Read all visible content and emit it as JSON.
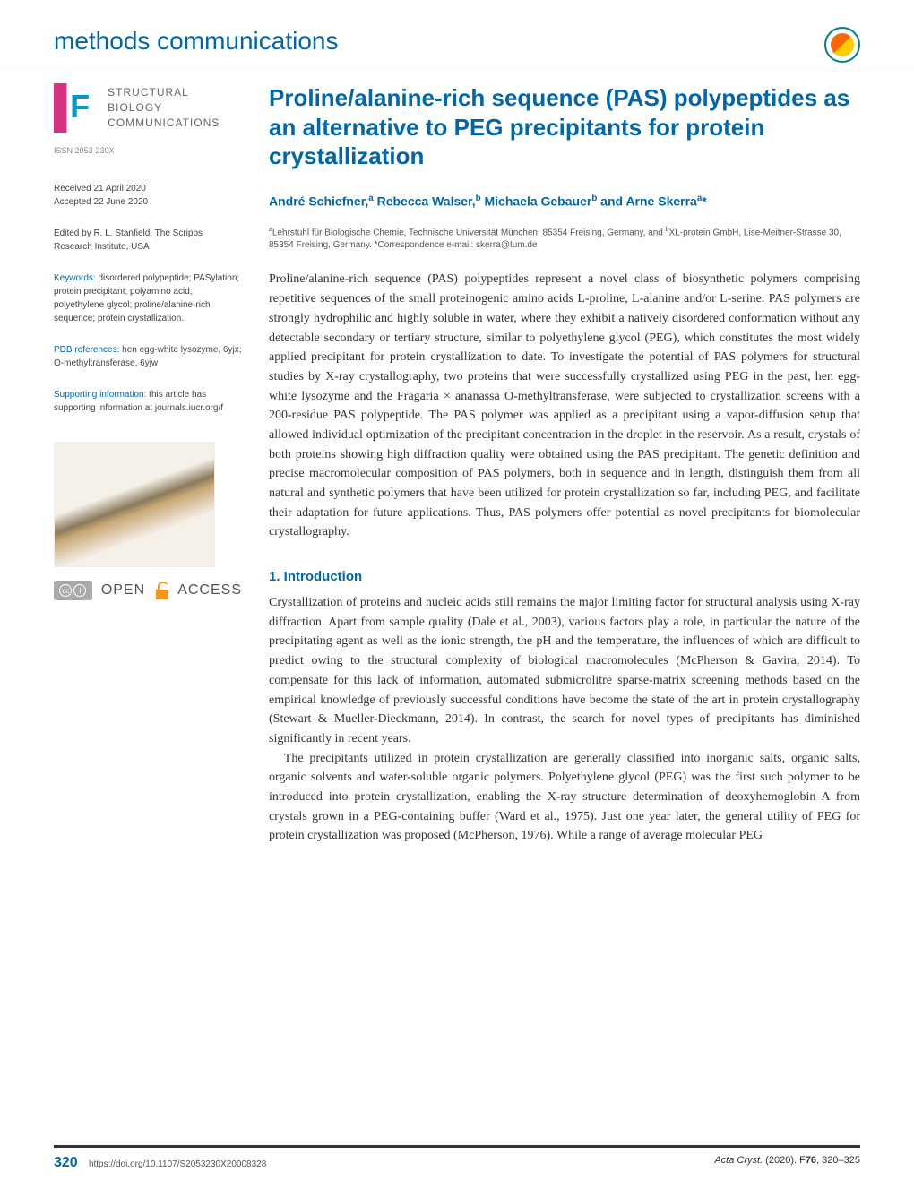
{
  "header": {
    "section_title": "methods communications"
  },
  "journal": {
    "name_line1": "STRUCTURAL BIOLOGY",
    "name_line2": "COMMUNICATIONS",
    "issn": "ISSN 2053-230X",
    "logo_letter": "F"
  },
  "meta": {
    "received": "Received 21 April 2020",
    "accepted": "Accepted 22 June 2020",
    "edited_by": "Edited by R. L. Stanfield, The Scripps Research Institute, USA",
    "keywords_label": "Keywords:",
    "keywords": " disordered polypeptide; PASylation; protein precipitant; polyamino acid; polyethylene glycol; proline/alanine-rich sequence; protein crystallization.",
    "pdb_label": "PDB references:",
    "pdb": " hen egg-white lysozyme, 6yjx; O-methyltransferase, 6yjw",
    "supporting_label": "Supporting information:",
    "supporting": " this article has supporting information at journals.iucr.org/f"
  },
  "article": {
    "title": "Proline/alanine-rich sequence (PAS) polypeptides as an alternative to PEG precipitants for protein crystallization",
    "authors_html": "André Schiefner,<sup>a</sup> Rebecca Walser,<sup>b</sup> Michaela Gebauer<sup>b</sup> and Arne Skerra<sup>a</sup>*",
    "affiliations_html": "<sup>a</sup>Lehrstuhl für Biologische Chemie, Technische Universität München, 85354 Freising, Germany, and <sup>b</sup>XL-protein GmbH, Lise-Meitner-Strasse 30, 85354 Freising, Germany. *Correspondence e-mail: skerra@tum.de",
    "abstract": "Proline/alanine-rich sequence (PAS) polypeptides represent a novel class of biosynthetic polymers comprising repetitive sequences of the small proteinogenic amino acids L-proline, L-alanine and/or L-serine. PAS polymers are strongly hydrophilic and highly soluble in water, where they exhibit a natively disordered conformation without any detectable secondary or tertiary structure, similar to polyethylene glycol (PEG), which constitutes the most widely applied precipitant for protein crystallization to date. To investigate the potential of PAS polymers for structural studies by X-ray crystallography, two proteins that were successfully crystallized using PEG in the past, hen egg-white lysozyme and the Fragaria × ananassa O-methyltransferase, were subjected to crystallization screens with a 200-residue PAS polypeptide. The PAS polymer was applied as a precipitant using a vapor-diffusion setup that allowed individual optimization of the precipitant concentration in the droplet in the reservoir. As a result, crystals of both proteins showing high diffraction quality were obtained using the PAS precipitant. The genetic definition and precise macromolecular composition of PAS polymers, both in sequence and in length, distinguish them from all natural and synthetic polymers that have been utilized for protein crystallization so far, including PEG, and facilitate their adaptation for future applications. Thus, PAS polymers offer potential as novel precipitants for biomolecular crystallography.",
    "section1_heading": "1. Introduction",
    "section1_p1": "Crystallization of proteins and nucleic acids still remains the major limiting factor for structural analysis using X-ray diffraction. Apart from sample quality (Dale et al., 2003), various factors play a role, in particular the nature of the precipitating agent as well as the ionic strength, the pH and the temperature, the influences of which are difficult to predict owing to the structural complexity of biological macromolecules (McPherson & Gavira, 2014). To compensate for this lack of information, automated submicrolitre sparse-matrix screening methods based on the empirical knowledge of previously successful conditions have become the state of the art in protein crystallography (Stewart & Mueller-Dieckmann, 2014). In contrast, the search for novel types of precipitants has diminished significantly in recent years.",
    "section1_p2": "The precipitants utilized in protein crystallization are generally classified into inorganic salts, organic salts, organic solvents and water-soluble organic polymers. Polyethylene glycol (PEG) was the first such polymer to be introduced into protein crystallization, enabling the X-ray structure determination of deoxyhemoglobin A from crystals grown in a PEG-containing buffer (Ward et al., 1975). Just one year later, the general utility of PEG for protein crystallization was proposed (McPherson, 1976). While a range of average molecular PEG"
  },
  "open_access": {
    "text": "OPEN",
    "text2": "ACCESS",
    "cc": "cc",
    "by": "i"
  },
  "footer": {
    "page": "320",
    "doi": "https://doi.org/10.1107/S2053230X20008328",
    "journal_ref_html": "<span class='italic'>Acta Cryst.</span> (2020). F<b>76</b>, 320–325"
  },
  "colors": {
    "primary": "#0066aa",
    "text": "#333333",
    "meta_text": "#444444",
    "light_text": "#888888"
  }
}
